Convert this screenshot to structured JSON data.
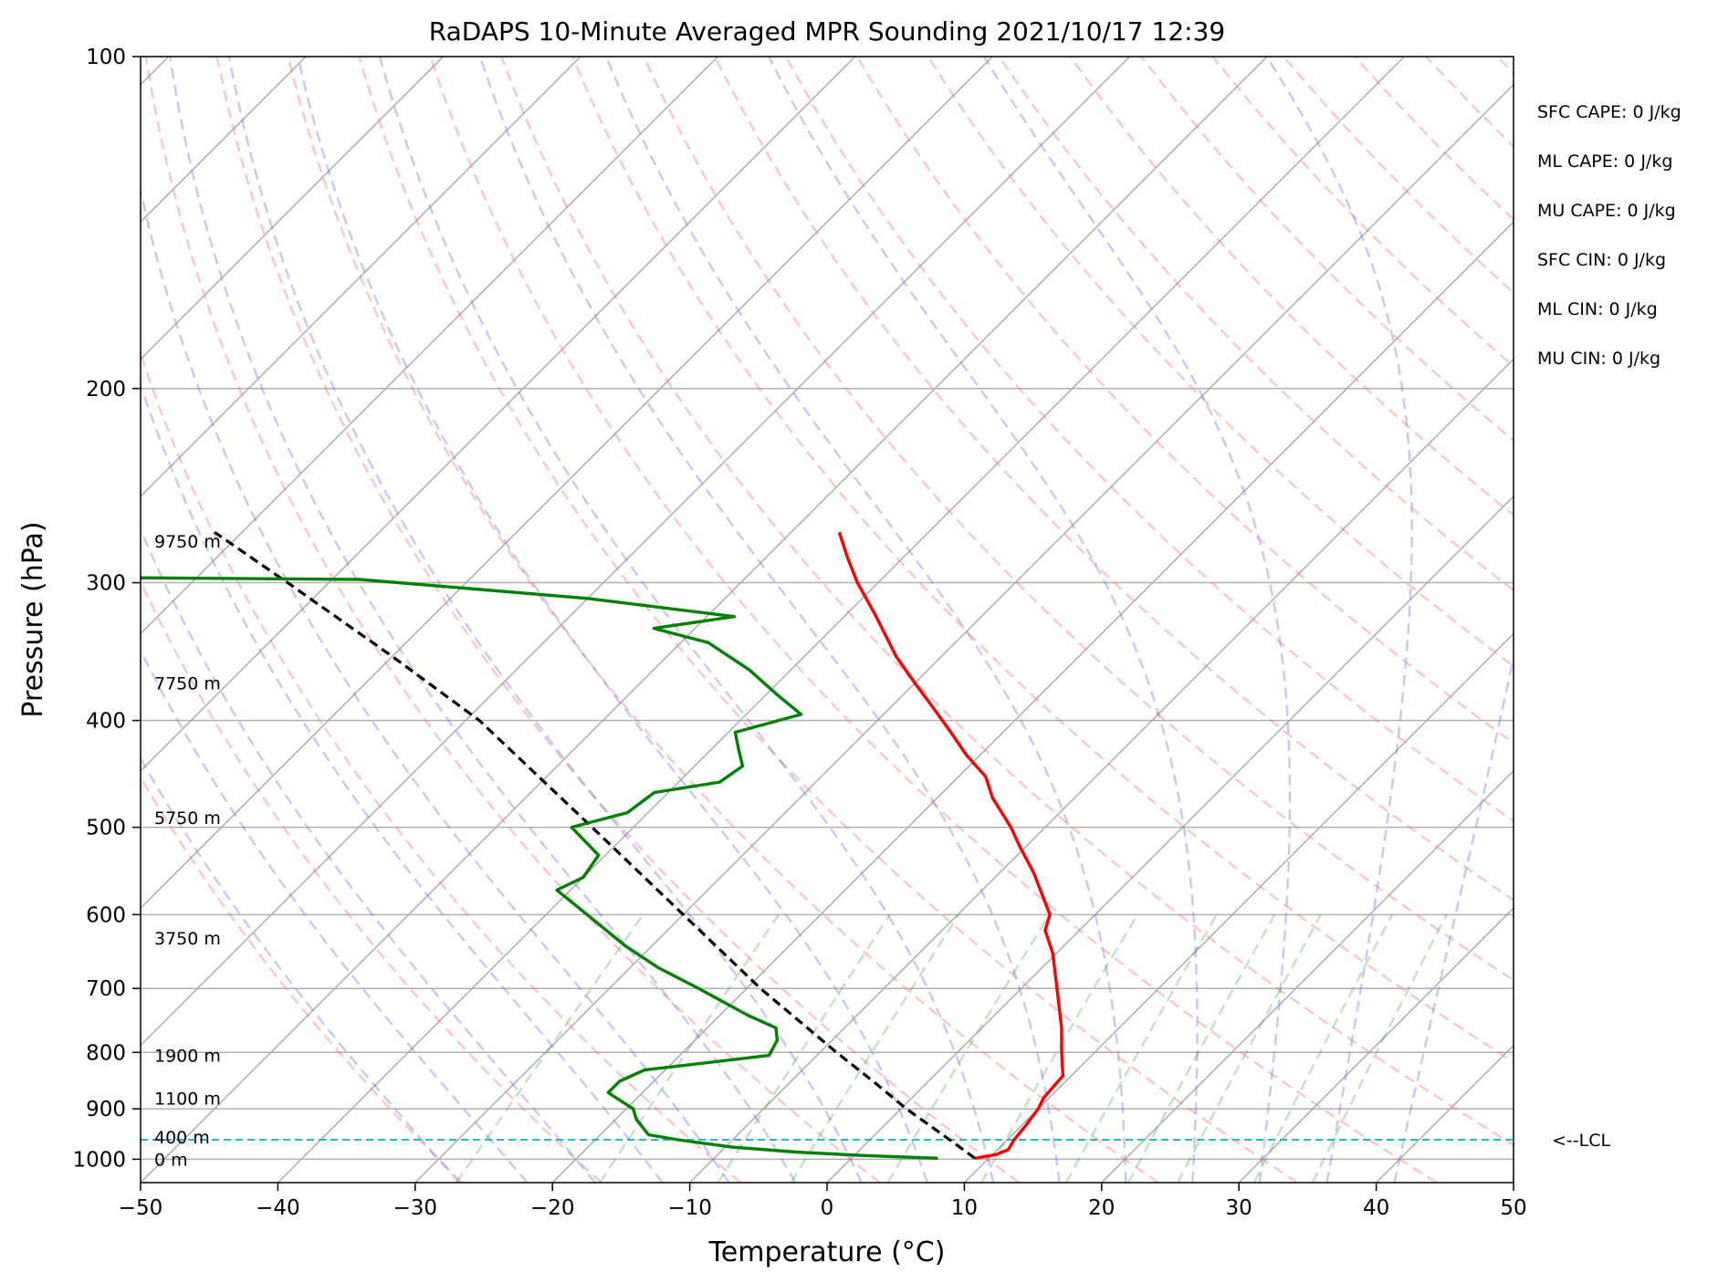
{
  "chart_data": {
    "type": "skew-t",
    "title": "RaDAPS 10-Minute Averaged MPR Sounding 2021/10/17 12:39",
    "xlabel": "Temperature (°C)",
    "ylabel": "Pressure (hPa)",
    "xlim": [
      -50,
      50
    ],
    "ylim": [
      1050,
      100
    ],
    "y_scale": "log",
    "grid": true,
    "x_ticks": [
      "−50",
      "−40",
      "−30",
      "−20",
      "−10",
      "0",
      "10",
      "20",
      "30",
      "40",
      "50"
    ],
    "y_ticks": [
      "100",
      "200",
      "300",
      "400",
      "500",
      "600",
      "700",
      "800",
      "900",
      "1000"
    ],
    "height_labels": [
      {
        "label": "0 m",
        "p": 1000
      },
      {
        "label": "400 m",
        "p": 955
      },
      {
        "label": "1100 m",
        "p": 880
      },
      {
        "label": "1900 m",
        "p": 805
      },
      {
        "label": "3750 m",
        "p": 630
      },
      {
        "label": "5750 m",
        "p": 490
      },
      {
        "label": "7750 m",
        "p": 370
      },
      {
        "label": "9750 m",
        "p": 275
      }
    ],
    "lcl": {
      "p": 960,
      "label": "<--LCL"
    },
    "indices": [
      "SFC CAPE: 0 J/kg",
      "ML CAPE: 0 J/kg",
      "MU CAPE: 0 J/kg",
      "SFC CIN: 0 J/kg",
      "ML CIN: 0 J/kg",
      "MU CIN: 0 J/kg"
    ],
    "temperature": [
      {
        "p": 998,
        "t": 9
      },
      {
        "p": 990,
        "t": 10.3
      },
      {
        "p": 980,
        "t": 10.8
      },
      {
        "p": 960,
        "t": 10.5
      },
      {
        "p": 930,
        "t": 10.3
      },
      {
        "p": 900,
        "t": 10.0
      },
      {
        "p": 880,
        "t": 9.6
      },
      {
        "p": 860,
        "t": 9.5
      },
      {
        "p": 840,
        "t": 9.4
      },
      {
        "p": 820,
        "t": 8.5
      },
      {
        "p": 800,
        "t": 7.6
      },
      {
        "p": 760,
        "t": 5.8
      },
      {
        "p": 700,
        "t": 2.6
      },
      {
        "p": 650,
        "t": -0.3
      },
      {
        "p": 620,
        "t": -2.5
      },
      {
        "p": 600,
        "t": -3.3
      },
      {
        "p": 550,
        "t": -7.5
      },
      {
        "p": 520,
        "t": -10.5
      },
      {
        "p": 500,
        "t": -12.5
      },
      {
        "p": 470,
        "t": -16.0
      },
      {
        "p": 450,
        "t": -18.0
      },
      {
        "p": 430,
        "t": -21.0
      },
      {
        "p": 410,
        "t": -23.8
      },
      {
        "p": 390,
        "t": -26.8
      },
      {
        "p": 370,
        "t": -30.0
      },
      {
        "p": 350,
        "t": -33.3
      },
      {
        "p": 320,
        "t": -38.0
      },
      {
        "p": 300,
        "t": -41.5
      },
      {
        "p": 285,
        "t": -44.0
      },
      {
        "p": 270,
        "t": -46.5
      }
    ],
    "dewpoint": [
      {
        "p": 998,
        "t": 6.3
      },
      {
        "p": 992,
        "t": 0.5
      },
      {
        "p": 985,
        "t": -4.5
      },
      {
        "p": 975,
        "t": -9.5
      },
      {
        "p": 960,
        "t": -14.0
      },
      {
        "p": 950,
        "t": -16.5
      },
      {
        "p": 935,
        "t": -17.5
      },
      {
        "p": 920,
        "t": -18.5
      },
      {
        "p": 900,
        "t": -19.5
      },
      {
        "p": 880,
        "t": -21.5
      },
      {
        "p": 870,
        "t": -22.5
      },
      {
        "p": 850,
        "t": -22.5
      },
      {
        "p": 830,
        "t": -21.5
      },
      {
        "p": 805,
        "t": -13.5
      },
      {
        "p": 780,
        "t": -14.0
      },
      {
        "p": 760,
        "t": -15.0
      },
      {
        "p": 740,
        "t": -18.0
      },
      {
        "p": 700,
        "t": -23.5
      },
      {
        "p": 670,
        "t": -28.0
      },
      {
        "p": 640,
        "t": -32.0
      },
      {
        "p": 600,
        "t": -37.0
      },
      {
        "p": 570,
        "t": -41.0
      },
      {
        "p": 555,
        "t": -40.0
      },
      {
        "p": 530,
        "t": -40.5
      },
      {
        "p": 500,
        "t": -44.5
      },
      {
        "p": 485,
        "t": -41.5
      },
      {
        "p": 465,
        "t": -41.0
      },
      {
        "p": 455,
        "t": -37.0
      },
      {
        "p": 440,
        "t": -36.5
      },
      {
        "p": 425,
        "t": -38.0
      },
      {
        "p": 410,
        "t": -39.5
      },
      {
        "p": 395,
        "t": -36.0
      },
      {
        "p": 380,
        "t": -39.0
      },
      {
        "p": 360,
        "t": -43.0
      },
      {
        "p": 340,
        "t": -48.0
      },
      {
        "p": 330,
        "t": -53.0
      },
      {
        "p": 322,
        "t": -48.0
      },
      {
        "p": 310,
        "t": -60.0
      },
      {
        "p": 298,
        "t": -78.0
      },
      {
        "p": 296,
        "t": -110.0
      }
    ],
    "parcel": [
      {
        "p": 998,
        "t": 9.0
      },
      {
        "p": 960,
        "t": 5.8
      },
      {
        "p": 900,
        "t": 0.4
      },
      {
        "p": 850,
        "t": -4.0
      },
      {
        "p": 800,
        "t": -8.8
      },
      {
        "p": 700,
        "t": -19.0
      },
      {
        "p": 600,
        "t": -30.0
      },
      {
        "p": 500,
        "t": -43.0
      },
      {
        "p": 400,
        "t": -59.0
      },
      {
        "p": 350,
        "t": -70.0
      },
      {
        "p": 300,
        "t": -83.0
      },
      {
        "p": 270,
        "t": -92.0
      }
    ],
    "series": [
      {
        "color": "#ff0000"
      },
      {
        "color": "#008000"
      },
      {
        "color": "#000000"
      }
    ]
  }
}
